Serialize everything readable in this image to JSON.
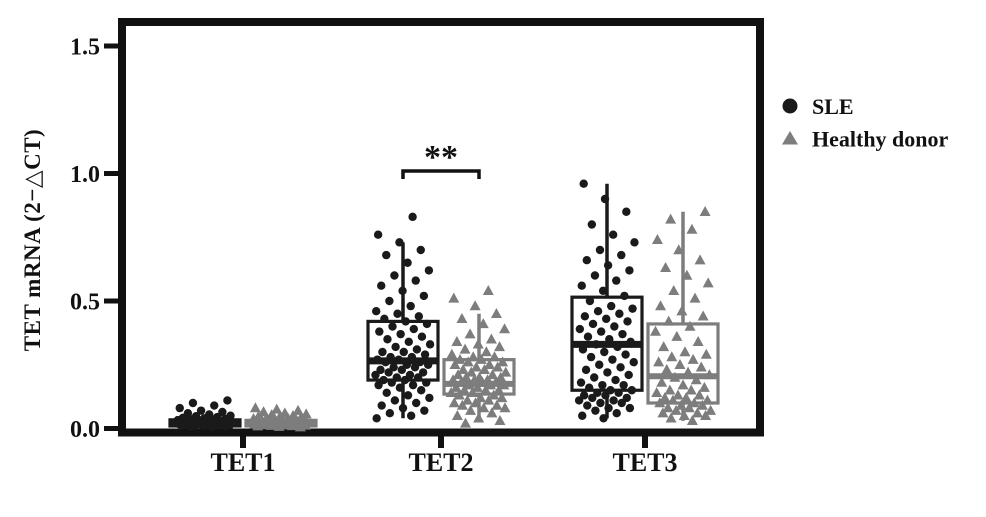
{
  "figure": {
    "background": "#ffffff",
    "ink_color": "#111111",
    "gray_color": "#7d7d7d"
  },
  "chart_data": {
    "type": "box-scatter",
    "title": "",
    "xlabel": "",
    "ylabel": "TET mRNA (2−△CT)",
    "categories": [
      "TET1",
      "TET2",
      "TET3"
    ],
    "ylim": [
      0,
      1.58
    ],
    "yticks": [
      0,
      0.5,
      1.0,
      1.5
    ],
    "ytick_labels": [
      "0.0",
      "0.5",
      "1.0",
      "1.5"
    ],
    "grid": false,
    "legend_position": "right-outside",
    "legend": [
      {
        "label": "SLE",
        "marker": "circle",
        "color": "#1a1a1a"
      },
      {
        "label": "Healthy donor",
        "marker": "triangle",
        "color": "#7d7d7d"
      }
    ],
    "significance": [
      {
        "category": "TET2",
        "label": "**",
        "bar_value": 1.01
      }
    ],
    "series": [
      {
        "name": "SLE",
        "marker": "circle",
        "color": "#1a1a1a",
        "boxes": {
          "TET1": {
            "low": 0.003,
            "q1": 0.01,
            "median": 0.02,
            "q3": 0.034,
            "high": 0.05
          },
          "TET2": {
            "low": 0.04,
            "q1": 0.19,
            "median": 0.265,
            "q3": 0.42,
            "high": 0.73
          },
          "TET3": {
            "low": 0.04,
            "q1": 0.15,
            "median": 0.33,
            "q3": 0.515,
            "high": 0.96
          }
        },
        "points": {
          "TET1": [
            0.005,
            0.007,
            0.008,
            0.01,
            0.01,
            0.012,
            0.012,
            0.013,
            0.014,
            0.015,
            0.015,
            0.016,
            0.017,
            0.018,
            0.018,
            0.019,
            0.02,
            0.02,
            0.02,
            0.021,
            0.022,
            0.022,
            0.023,
            0.024,
            0.025,
            0.025,
            0.026,
            0.027,
            0.028,
            0.03,
            0.03,
            0.031,
            0.032,
            0.033,
            0.035,
            0.036,
            0.038,
            0.04,
            0.042,
            0.045,
            0.048,
            0.05,
            0.055,
            0.06,
            0.065,
            0.07,
            0.08,
            0.09,
            0.1,
            0.11
          ],
          "TET2": [
            0.04,
            0.05,
            0.06,
            0.07,
            0.08,
            0.09,
            0.1,
            0.11,
            0.12,
            0.13,
            0.14,
            0.15,
            0.16,
            0.17,
            0.17,
            0.18,
            0.18,
            0.19,
            0.19,
            0.2,
            0.2,
            0.21,
            0.21,
            0.22,
            0.22,
            0.23,
            0.23,
            0.24,
            0.24,
            0.25,
            0.25,
            0.26,
            0.26,
            0.27,
            0.27,
            0.28,
            0.28,
            0.29,
            0.3,
            0.3,
            0.31,
            0.32,
            0.33,
            0.34,
            0.35,
            0.36,
            0.37,
            0.38,
            0.39,
            0.4,
            0.41,
            0.42,
            0.43,
            0.44,
            0.45,
            0.46,
            0.48,
            0.5,
            0.52,
            0.54,
            0.56,
            0.58,
            0.6,
            0.62,
            0.65,
            0.68,
            0.7,
            0.73,
            0.76,
            0.83
          ],
          "TET3": [
            0.04,
            0.05,
            0.06,
            0.07,
            0.08,
            0.08,
            0.09,
            0.1,
            0.1,
            0.11,
            0.11,
            0.12,
            0.12,
            0.13,
            0.13,
            0.14,
            0.14,
            0.15,
            0.15,
            0.16,
            0.17,
            0.17,
            0.18,
            0.19,
            0.2,
            0.21,
            0.22,
            0.23,
            0.24,
            0.25,
            0.26,
            0.27,
            0.28,
            0.29,
            0.3,
            0.31,
            0.32,
            0.33,
            0.34,
            0.35,
            0.36,
            0.37,
            0.38,
            0.39,
            0.4,
            0.41,
            0.42,
            0.43,
            0.44,
            0.45,
            0.46,
            0.47,
            0.48,
            0.5,
            0.52,
            0.54,
            0.56,
            0.58,
            0.6,
            0.62,
            0.64,
            0.66,
            0.68,
            0.7,
            0.73,
            0.76,
            0.8,
            0.85,
            0.9,
            0.96
          ]
        }
      },
      {
        "name": "Healthy donor",
        "marker": "triangle",
        "color": "#7d7d7d",
        "boxes": {
          "TET1": {
            "low": 0.003,
            "q1": 0.01,
            "median": 0.02,
            "q3": 0.032,
            "high": 0.045
          },
          "TET2": {
            "low": 0.03,
            "q1": 0.135,
            "median": 0.175,
            "q3": 0.27,
            "high": 0.45
          },
          "TET3": {
            "low": 0.03,
            "q1": 0.1,
            "median": 0.205,
            "q3": 0.41,
            "high": 0.85
          }
        },
        "points": {
          "TET1": [
            0.005,
            0.007,
            0.009,
            0.01,
            0.011,
            0.012,
            0.013,
            0.014,
            0.015,
            0.015,
            0.016,
            0.017,
            0.018,
            0.019,
            0.02,
            0.02,
            0.021,
            0.022,
            0.023,
            0.024,
            0.025,
            0.026,
            0.027,
            0.028,
            0.029,
            0.03,
            0.031,
            0.032,
            0.034,
            0.035,
            0.037,
            0.038,
            0.04,
            0.042,
            0.044,
            0.046,
            0.048,
            0.05,
            0.053,
            0.056,
            0.06,
            0.065,
            0.07,
            0.075,
            0.08
          ],
          "TET2": [
            0.02,
            0.03,
            0.04,
            0.05,
            0.06,
            0.07,
            0.08,
            0.08,
            0.09,
            0.09,
            0.1,
            0.1,
            0.11,
            0.11,
            0.12,
            0.12,
            0.13,
            0.13,
            0.14,
            0.14,
            0.15,
            0.15,
            0.15,
            0.16,
            0.16,
            0.17,
            0.17,
            0.17,
            0.18,
            0.18,
            0.18,
            0.19,
            0.19,
            0.19,
            0.2,
            0.2,
            0.2,
            0.21,
            0.21,
            0.22,
            0.22,
            0.23,
            0.23,
            0.24,
            0.24,
            0.25,
            0.25,
            0.26,
            0.26,
            0.27,
            0.27,
            0.28,
            0.28,
            0.29,
            0.3,
            0.31,
            0.32,
            0.33,
            0.34,
            0.35,
            0.37,
            0.39,
            0.41,
            0.43,
            0.45,
            0.48,
            0.51,
            0.54
          ],
          "TET3": [
            0.03,
            0.04,
            0.05,
            0.05,
            0.06,
            0.06,
            0.07,
            0.07,
            0.08,
            0.08,
            0.09,
            0.09,
            0.1,
            0.1,
            0.11,
            0.11,
            0.12,
            0.12,
            0.13,
            0.13,
            0.14,
            0.15,
            0.15,
            0.16,
            0.17,
            0.18,
            0.19,
            0.2,
            0.21,
            0.22,
            0.23,
            0.24,
            0.25,
            0.26,
            0.27,
            0.28,
            0.29,
            0.3,
            0.32,
            0.34,
            0.36,
            0.38,
            0.4,
            0.42,
            0.44,
            0.46,
            0.48,
            0.51,
            0.54,
            0.57,
            0.6,
            0.63,
            0.66,
            0.7,
            0.74,
            0.78,
            0.82,
            0.85
          ]
        }
      }
    ]
  }
}
